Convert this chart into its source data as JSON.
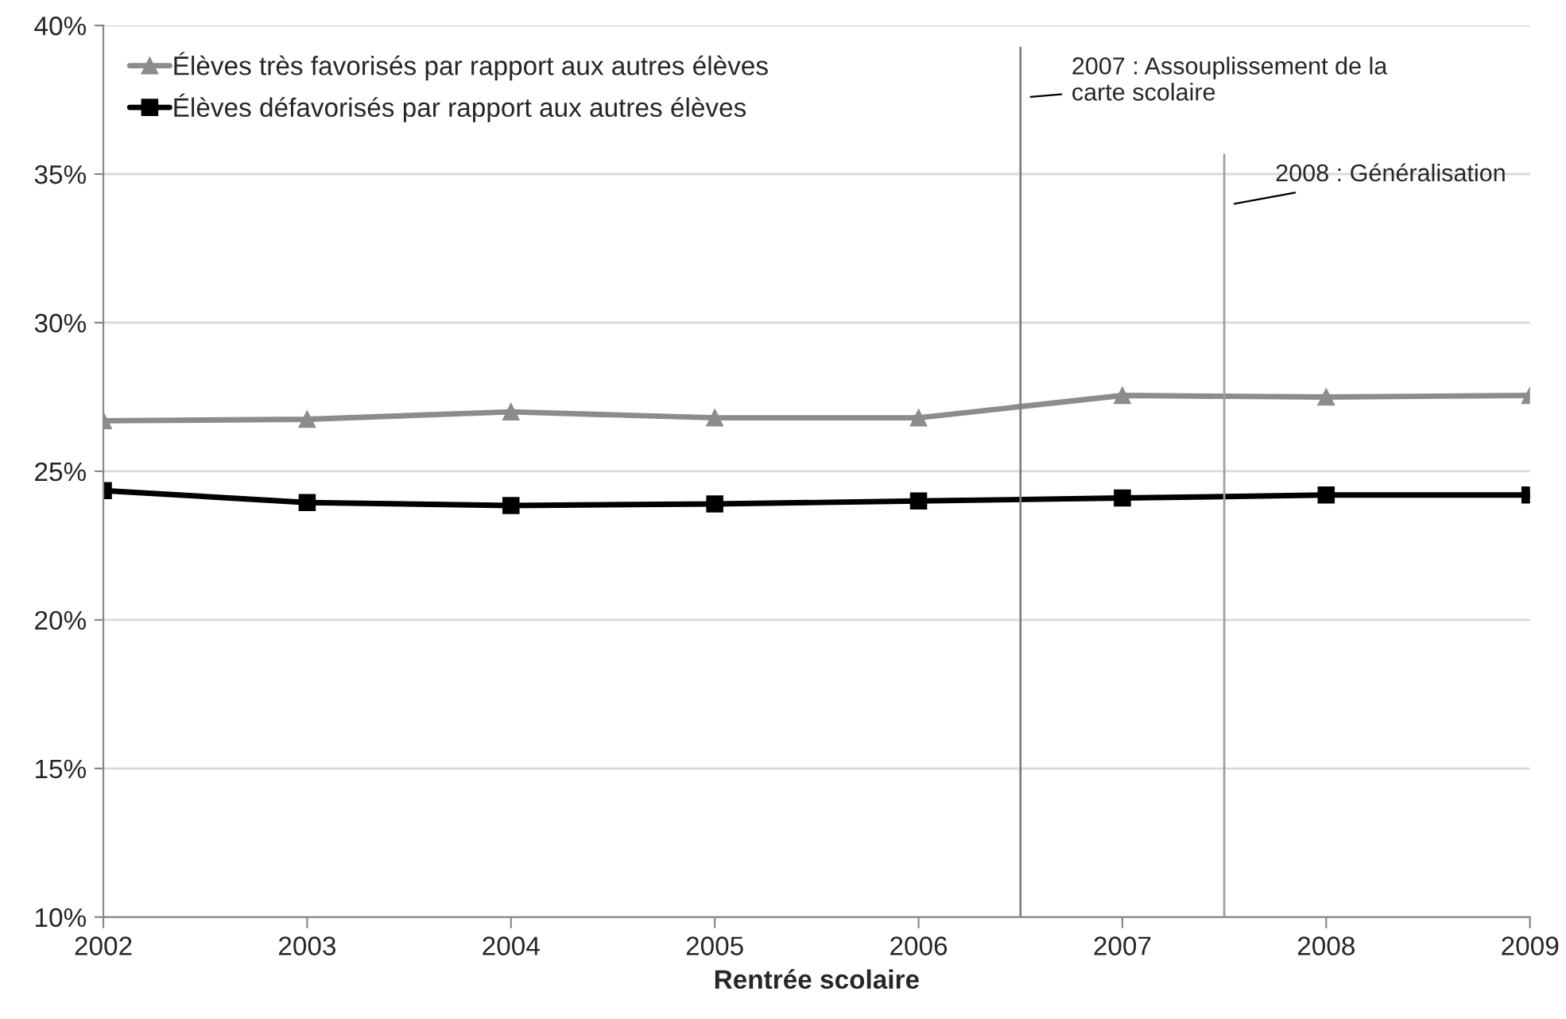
{
  "chart_data": {
    "type": "line",
    "xlabel": "Rentrée scolaire",
    "x": [
      2002,
      2003,
      2004,
      2005,
      2006,
      2007,
      2008,
      2009
    ],
    "series": [
      {
        "name": "Élèves très favorisés par rapport aux autres élèves",
        "color": "#8c8c8c",
        "marker": "triangle",
        "values": [
          26.7,
          26.75,
          27.0,
          26.8,
          26.8,
          27.55,
          27.5,
          27.55
        ]
      },
      {
        "name": "Élèves défavorisés par rapport aux autres élèves",
        "color": "#000000",
        "marker": "square",
        "values": [
          24.35,
          23.95,
          23.85,
          23.9,
          24.0,
          24.1,
          24.2,
          24.2
        ]
      }
    ],
    "xlim": [
      2002,
      2009
    ],
    "xticks": [
      2002,
      2003,
      2004,
      2005,
      2006,
      2007,
      2008,
      2009
    ],
    "ylim": [
      10,
      40
    ],
    "yticks": [
      {
        "value": 10,
        "label": "10%"
      },
      {
        "value": 15,
        "label": "15%"
      },
      {
        "value": 20,
        "label": "20%"
      },
      {
        "value": 25,
        "label": "25%"
      },
      {
        "value": 30,
        "label": "30%"
      },
      {
        "value": 35,
        "label": "35%"
      },
      {
        "value": 40,
        "label": "40%"
      }
    ],
    "ref_lines": [
      {
        "axis": "x",
        "value": 2006.5,
        "label": "2007 : Assouplissement de la\ncarte scolaire",
        "color": "#808080"
      },
      {
        "axis": "x",
        "value": 2007.5,
        "label": "2008 : Généralisation",
        "color": "#a0a0a0"
      }
    ],
    "grid": "y",
    "legend": "top left"
  }
}
